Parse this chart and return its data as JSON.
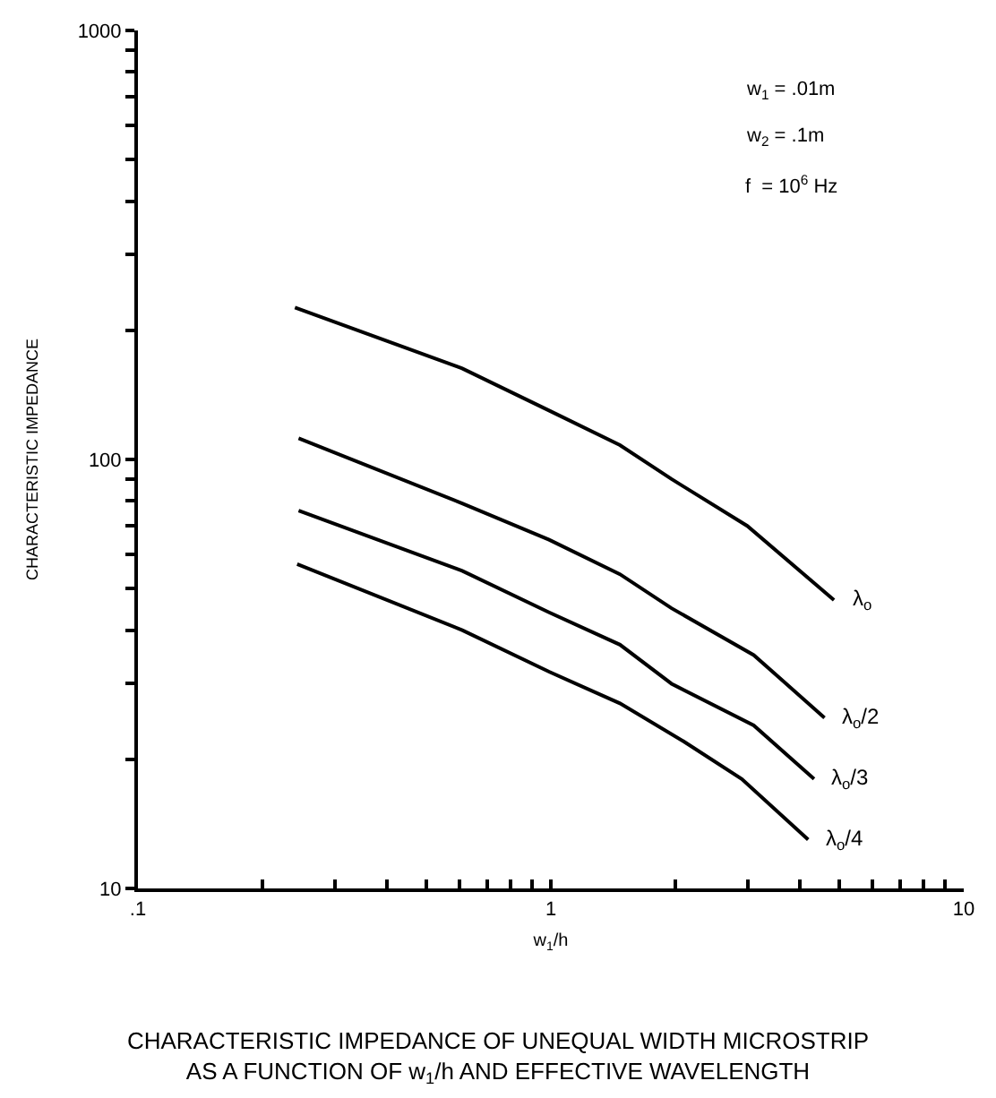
{
  "chart_data": {
    "type": "line",
    "title": "CHARACTERISTIC IMPEDANCE OF UNEQUAL WIDTH MICROSTRIP\nAS A FUNCTION OF w$_{1}$/h AND EFFECTIVE WAVELENGTH",
    "xlabel": "w$_{1}$/h",
    "ylabel": "CHARACTERISTIC IMPEDANCE",
    "log": "xy",
    "legend": false,
    "marker": "none",
    "line_style": "solid",
    "xlim": [
      0.1,
      10
    ],
    "ylim": [
      10,
      1000
    ],
    "xticks": [
      {
        "value": 0.1,
        "label": ".1"
      },
      {
        "value": 0.2,
        "label": null
      },
      {
        "value": 0.3,
        "label": null
      },
      {
        "value": 0.4,
        "label": null
      },
      {
        "value": 0.5,
        "label": null
      },
      {
        "value": 0.6,
        "label": null
      },
      {
        "value": 0.7,
        "label": null
      },
      {
        "value": 0.8,
        "label": null
      },
      {
        "value": 0.9,
        "label": null
      },
      1,
      {
        "value": 2,
        "label": null
      },
      {
        "value": 3,
        "label": null
      },
      {
        "value": 4,
        "label": null
      },
      {
        "value": 5,
        "label": null
      },
      {
        "value": 6,
        "label": null
      },
      {
        "value": 7,
        "label": null
      },
      {
        "value": 8,
        "label": null
      },
      {
        "value": 9,
        "label": null
      },
      10
    ],
    "yticks": [
      10,
      {
        "value": 20,
        "label": null
      },
      {
        "value": 30,
        "label": null
      },
      {
        "value": 40,
        "label": null
      },
      {
        "value": 50,
        "label": null
      },
      {
        "value": 60,
        "label": null
      },
      {
        "value": 70,
        "label": null
      },
      {
        "value": 80,
        "label": null
      },
      {
        "value": 90,
        "label": null
      },
      100,
      {
        "value": 200,
        "label": null
      },
      {
        "value": 300,
        "label": null
      },
      {
        "value": 400,
        "label": null
      },
      {
        "value": 500,
        "label": null
      },
      {
        "value": 600,
        "label": null
      },
      {
        "value": 700,
        "label": null
      },
      {
        "value": 800,
        "label": null
      },
      {
        "value": 900,
        "label": null
      },
      1000
    ],
    "annotations": [
      "w$_{1}$ = .01m",
      "w$_{2}$ = .1m",
      "f  = 10$^{6}$ Hz"
    ],
    "series": [
      {
        "name": "λ$_{o}$",
        "color": "#000000",
        "x": [
          0.24,
          0.61,
          0.99,
          1.47,
          1.96,
          2.99,
          4.85
        ],
        "values": [
          226,
          163,
          130,
          108,
          90,
          70,
          47
        ]
      },
      {
        "name": "λ$_{o}$/2",
        "color": "#000000",
        "x": [
          0.245,
          0.61,
          0.99,
          1.47,
          1.96,
          3.1,
          4.6
        ],
        "values": [
          112,
          79,
          65,
          54,
          45,
          35,
          25
        ]
      },
      {
        "name": "λ$_{o}$/3",
        "color": "#000000",
        "x": [
          0.245,
          0.61,
          0.99,
          1.47,
          1.96,
          3.1,
          4.34
        ],
        "values": [
          76,
          55,
          44,
          37,
          30,
          24,
          18
        ]
      },
      {
        "name": "λ$_{o}$/4",
        "color": "#000000",
        "x": [
          0.243,
          0.61,
          0.99,
          1.47,
          2.1,
          2.9,
          4.2
        ],
        "values": [
          57,
          40,
          32,
          27,
          22,
          18,
          13
        ]
      }
    ]
  }
}
